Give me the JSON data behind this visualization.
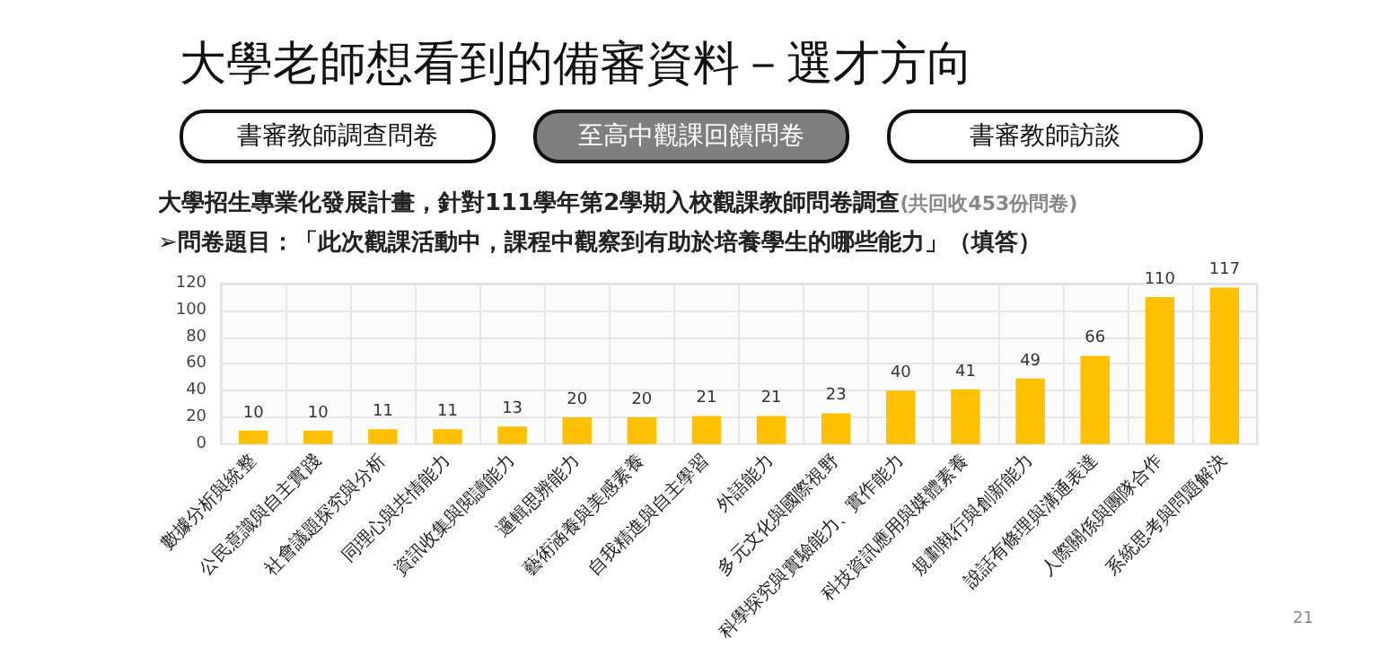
{
  "chart_data": {
    "type": "bar",
    "title": "大學老師想看到的備審資料－選才方向",
    "subtitle": "大學招生專業化發展計畫，針對111學年第2學期入校觀課教師問卷調查",
    "annotations": [
      "書審教師調查問卷",
      "至高中觀課回饋問卷",
      "書審教師訪談",
      "(共回收453份問卷)",
      "➢問卷題目：「此次觀課活動中，課程中觀察到有助於培養學生的哪些能力」（填答）",
      "21"
    ],
    "categories": [
      "數據分析與統整",
      "公民意識與自主實踐",
      "社會議題探究與分析",
      "同理心與共情能力",
      "資訊收集與閱讀能力",
      "邏輯思辨能力",
      "藝術涵養與美感素養",
      "自我精進與自主學習",
      "外語能力",
      "多元文化與國際視野",
      "科學探究與實驗能力、實作能力",
      "科技資訊應用與媒體素養",
      "規劃執行與創新能力",
      "說話有條理與溝通表達",
      "人際關係與團隊合作",
      "系統思考與問題解決"
    ],
    "values": [
      10,
      10,
      11,
      11,
      13,
      20,
      20,
      21,
      21,
      23,
      40,
      41,
      49,
      66,
      110,
      117
    ],
    "color": "#ffc000",
    "ylim": [
      0,
      120
    ],
    "yticks": [
      0,
      20,
      40,
      60,
      80,
      100,
      120
    ],
    "grid": true,
    "data_labels": true
  }
}
